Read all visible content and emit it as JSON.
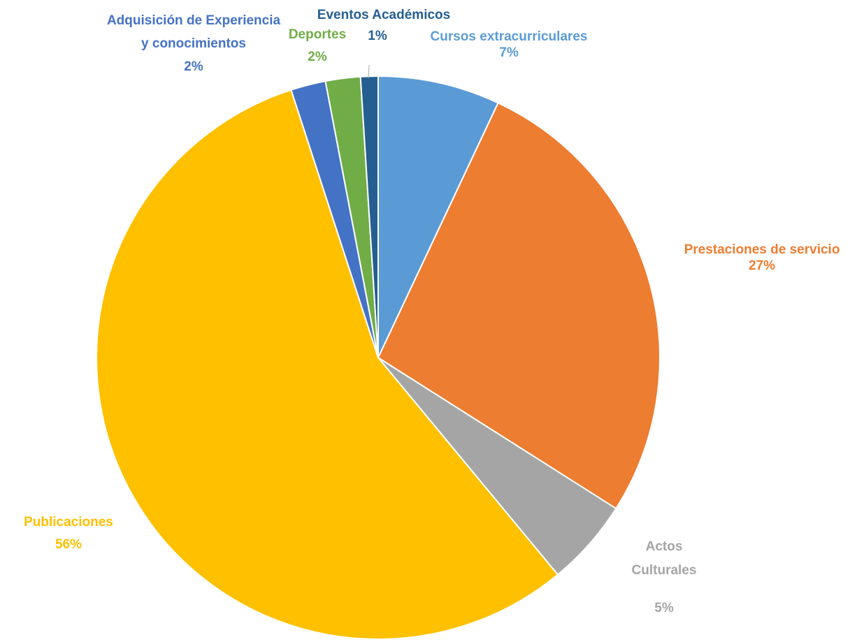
{
  "chart_data": {
    "type": "pie",
    "slices": [
      {
        "name": "Cursos extracurriculares",
        "value": 7,
        "label": "7%",
        "color": "#5B9BD5"
      },
      {
        "name": "Prestaciones de servicio",
        "value": 27,
        "label": "27%",
        "color": "#ED7D31"
      },
      {
        "name": "Actos Culturales",
        "value": 5,
        "label": "5%",
        "color": "#A5A5A5"
      },
      {
        "name": "Publicaciones",
        "value": 56,
        "label": "56%",
        "color": "#FFC000"
      },
      {
        "name": "Adquisición de Experiencia y conocimientos",
        "value": 2,
        "label": "2%",
        "color": "#4472C4"
      },
      {
        "name": "Deportes",
        "value": 2,
        "label": "2%",
        "color": "#70AD47"
      },
      {
        "name": "Eventos Académicos",
        "value": 1,
        "label": "1%",
        "color": "#255E91"
      }
    ],
    "label_text": {
      "cursos": {
        "line1": "Cursos extracurriculares",
        "pct": "7%"
      },
      "prestaciones": {
        "line1": "Prestaciones de servicio",
        "pct": "27%"
      },
      "actos": {
        "line1": "Actos",
        "line2": "Culturales",
        "pct": "5%"
      },
      "publicaciones": {
        "line1": "Publicaciones",
        "pct": "56%"
      },
      "adquisicion": {
        "line1": "Adquisición de Experiencia",
        "line2": "y conocimientos",
        "pct": "2%"
      },
      "deportes": {
        "line1": "Deportes",
        "pct": "2%"
      },
      "eventos": {
        "line1": "Eventos Académicos",
        "pct": "1%"
      }
    }
  }
}
